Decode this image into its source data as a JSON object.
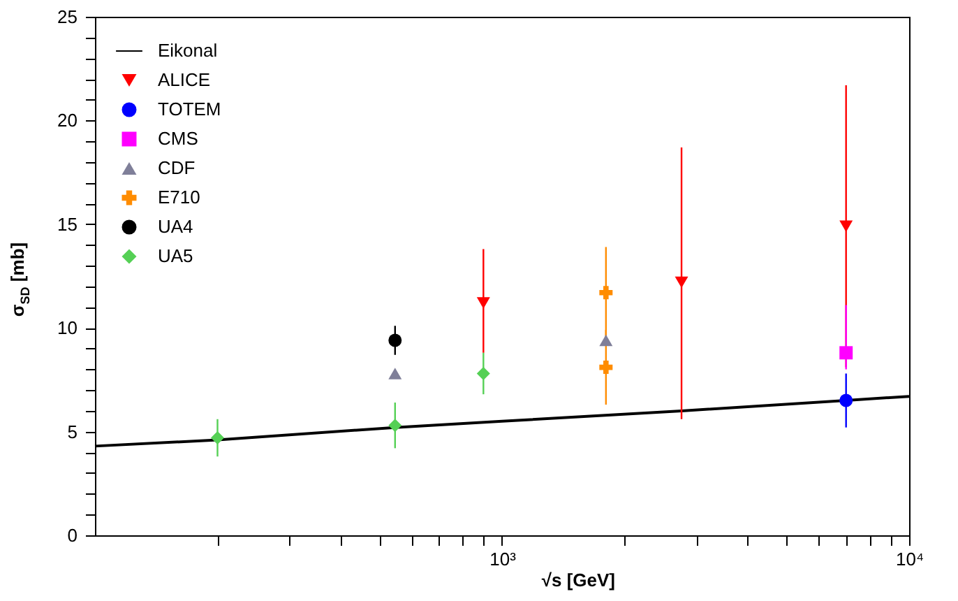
{
  "chart_data": {
    "type": "scatter",
    "xlabel": "√s [GeV]",
    "ylabel": "σ$_{SD}$ [mb]",
    "log": "x",
    "legend": "top left",
    "grid": false,
    "xlim": [
      100,
      10000
    ],
    "ylim": [
      0,
      25
    ],
    "xticks": [
      {
        "value": 200,
        "label": null
      },
      {
        "value": 300,
        "label": null
      },
      {
        "value": 400,
        "label": null
      },
      {
        "value": 500,
        "label": null
      },
      {
        "value": 600,
        "label": null
      },
      {
        "value": 700,
        "label": null
      },
      {
        "value": 800,
        "label": null
      },
      {
        "value": 900,
        "label": null
      },
      {
        "value": 1000,
        "label": "10³"
      },
      {
        "value": 2000,
        "label": null
      },
      {
        "value": 3000,
        "label": null
      },
      {
        "value": 4000,
        "label": null
      },
      {
        "value": 5000,
        "label": null
      },
      {
        "value": 6000,
        "label": null
      },
      {
        "value": 7000,
        "label": null
      },
      {
        "value": 8000,
        "label": null
      },
      {
        "value": 9000,
        "label": null
      },
      {
        "value": 10000,
        "label": "10⁴"
      }
    ],
    "yticks": [
      0,
      {
        "value": 1,
        "label": null
      },
      {
        "value": 2,
        "label": null
      },
      {
        "value": 3,
        "label": null
      },
      {
        "value": 4,
        "label": null
      },
      5,
      {
        "value": 6,
        "label": null
      },
      {
        "value": 7,
        "label": null
      },
      {
        "value": 8,
        "label": null
      },
      {
        "value": 9,
        "label": null
      },
      10,
      {
        "value": 11,
        "label": null
      },
      {
        "value": 12,
        "label": null
      },
      {
        "value": 13,
        "label": null
      },
      {
        "value": 14,
        "label": null
      },
      15,
      {
        "value": 16,
        "label": null
      },
      {
        "value": 17,
        "label": null
      },
      {
        "value": 18,
        "label": null
      },
      {
        "value": 19,
        "label": null
      },
      20,
      {
        "value": 21,
        "label": null
      },
      {
        "value": 22,
        "label": null
      },
      {
        "value": 23,
        "label": null
      },
      {
        "value": 24,
        "label": null
      },
      25
    ],
    "series": [
      {
        "name": "Eikonal",
        "type": "line",
        "color": "#000000",
        "marker": "none",
        "line_style": "solid",
        "x": [
          100,
          200,
          546,
          1000,
          2760,
          7000,
          10000
        ],
        "values": [
          4.3,
          4.6,
          5.2,
          5.5,
          6.0,
          6.5,
          6.7
        ]
      },
      {
        "name": "ALICE",
        "color": "#ff0000",
        "marker": "triangle-down",
        "x": [
          900,
          2760,
          7000
        ],
        "values": [
          11.2,
          12.2,
          14.9
        ],
        "errors": [
          [
            8.8,
            13.8
          ],
          [
            5.6,
            18.7
          ],
          [
            8.1,
            21.7
          ]
        ]
      },
      {
        "name": "TOTEM",
        "color": "#0000ff",
        "marker": "circle",
        "x": [
          7000
        ],
        "values": [
          6.5
        ],
        "errors": [
          1.3
        ]
      },
      {
        "name": "CMS",
        "color": "#ff00ff",
        "marker": "square",
        "x": [
          7000
        ],
        "values": [
          8.8
        ],
        "errors": [
          [
            8.0,
            11.1
          ]
        ]
      },
      {
        "name": "CDF",
        "color": "#7f7f99",
        "marker": "triangle",
        "x": [
          546,
          1800
        ],
        "values": [
          7.8,
          9.4
        ]
      },
      {
        "name": "E710",
        "color": "#ff8c00",
        "marker": "cross",
        "x": [
          1800,
          1800
        ],
        "values": [
          11.7,
          8.1
        ],
        "errors": [
          2.2,
          1.8
        ]
      },
      {
        "name": "UA4",
        "color": "#000000",
        "marker": "circle",
        "x": [
          546
        ],
        "values": [
          9.4
        ],
        "errors": [
          0.7
        ]
      },
      {
        "name": "UA5",
        "color": "#55d055",
        "marker": "diamond",
        "x": [
          200,
          546,
          900
        ],
        "values": [
          4.7,
          5.3,
          7.8
        ],
        "errors": [
          0.9,
          1.1,
          1.0
        ]
      }
    ]
  }
}
